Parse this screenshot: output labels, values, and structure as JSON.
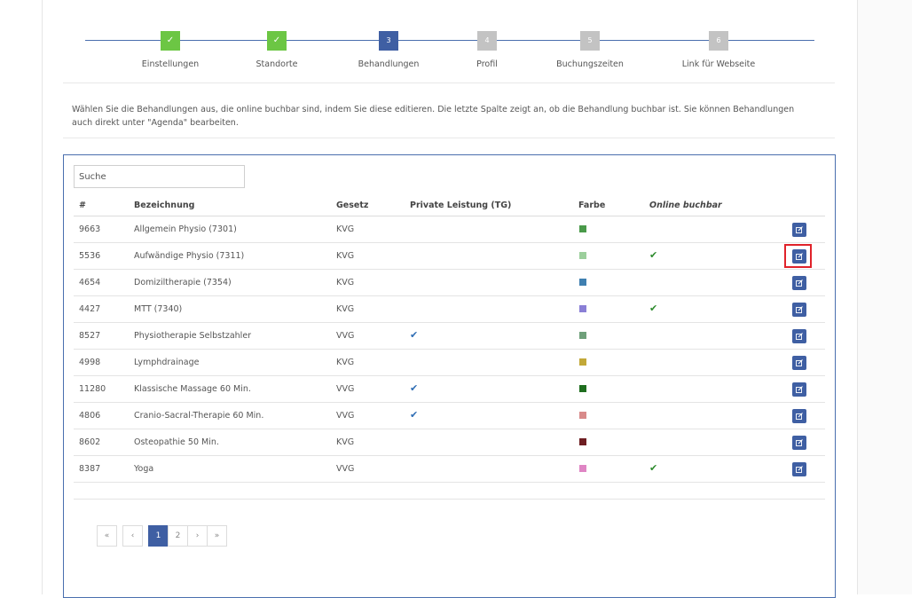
{
  "wizard": {
    "steps": [
      {
        "marker": "✓",
        "label": "Einstellungen",
        "state": "done"
      },
      {
        "marker": "✓",
        "label": "Standorte",
        "state": "done"
      },
      {
        "marker": "3",
        "label": "Behandlungen",
        "state": "current"
      },
      {
        "marker": "4",
        "label": "Profil",
        "state": "todo"
      },
      {
        "marker": "5",
        "label": "Buchungszeiten",
        "state": "todo"
      },
      {
        "marker": "6",
        "label": "Link für Webseite",
        "state": "todo"
      }
    ]
  },
  "info": {
    "line1": "Wählen Sie die Behandlungen aus, die online buchbar sind, indem Sie diese editieren. Die letzte Spalte zeigt an, ob die Behandlung buchbar ist. Sie können Behandlungen",
    "line2": "auch direkt unter \"Agenda\" bearbeiten."
  },
  "search": {
    "placeholder": "Suche"
  },
  "table": {
    "headers": {
      "id": "#",
      "name": "Bezeichnung",
      "law": "Gesetz",
      "private": "Private Leistung (TG)",
      "color": "Farbe",
      "online": "Online buchbar"
    },
    "rows": [
      {
        "id": "9663",
        "name": "Allgemein Physio (7301)",
        "law": "KVG",
        "private": "",
        "color": "#4a9a4a",
        "online": ""
      },
      {
        "id": "5536",
        "name": "Aufwändige Physio (7311)",
        "law": "KVG",
        "private": "",
        "color": "#9ccf9c",
        "online": "✔"
      },
      {
        "id": "4654",
        "name": "Domiziltherapie (7354)",
        "law": "KVG",
        "private": "",
        "color": "#3f7fb0",
        "online": ""
      },
      {
        "id": "4427",
        "name": "MTT (7340)",
        "law": "KVG",
        "private": "",
        "color": "#8a7fd6",
        "online": "✔"
      },
      {
        "id": "8527",
        "name": "Physiotherapie Selbstzahler",
        "law": "VVG",
        "private": "✔",
        "color": "#6fa07a",
        "online": ""
      },
      {
        "id": "4998",
        "name": "Lymphdrainage",
        "law": "KVG",
        "private": "",
        "color": "#c2a838",
        "online": ""
      },
      {
        "id": "11280",
        "name": "Klassische Massage 60 Min.",
        "law": "VVG",
        "private": "✔",
        "color": "#1f6e1f",
        "online": ""
      },
      {
        "id": "4806",
        "name": "Cranio-Sacral-Therapie 60 Min.",
        "law": "VVG",
        "private": "✔",
        "color": "#d88a8a",
        "online": ""
      },
      {
        "id": "8602",
        "name": "Osteopathie 50 Min.",
        "law": "KVG",
        "private": "",
        "color": "#6e1e22",
        "online": ""
      },
      {
        "id": "8387",
        "name": "Yoga",
        "law": "VVG",
        "private": "",
        "color": "#df85c4",
        "online": "✔"
      }
    ]
  },
  "pagination": {
    "first": "«",
    "prev": "‹",
    "pages": [
      "1",
      "2"
    ],
    "next": "›",
    "last": "»",
    "current": "1"
  },
  "colors": {
    "accent": "#3f5fa3",
    "done": "#6cc644",
    "pending": "#c3c3c3",
    "highlight": "#e0222a",
    "check_blue": "#2e6db4",
    "check_green": "#2e8b2e"
  },
  "icons": {
    "edit": "edit-icon",
    "check": "checkmark-icon"
  }
}
